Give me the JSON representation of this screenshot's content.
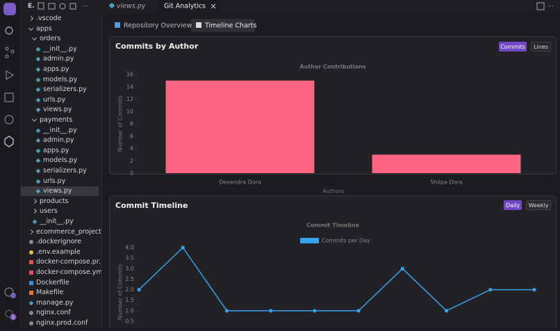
{
  "activity_bar": {
    "badge": "1"
  },
  "explorer": {
    "title": "E.",
    "items": [
      ".vscode",
      "apps",
      "orders",
      "__init__.py",
      "admin.py",
      "apps.py",
      "models.py",
      "serializers.py",
      "urls.py",
      "views.py",
      "payments",
      "__init__.py",
      "admin.py",
      "apps.py",
      "models.py",
      "serializers.py",
      "urls.py",
      "views.py",
      "products",
      "users",
      "__init__.py",
      "ecommerce_project",
      ".dockerignore",
      ".env.example",
      "docker-compose.pr...",
      "docker-compose.yml",
      "Dockerfile",
      "Makefile",
      "manage.py",
      "nginx.conf",
      "nginx.prod.conf"
    ]
  },
  "tabs": [
    "views.py",
    "Git Analytics"
  ],
  "subtabs": [
    "Repository Overview",
    "Timeline Charts"
  ],
  "panels": [
    {
      "title": "Commits by Author",
      "buttons": [
        "Commits",
        "Lines"
      ]
    },
    {
      "title": "Commit Timeline",
      "buttons": [
        "Daily",
        "Weekly"
      ]
    }
  ],
  "chart_data": [
    {
      "type": "bar",
      "title": "Author Contributions",
      "x_label": "Authors",
      "y_label": "Number of Commits",
      "categories": [
        "Devendra Dora",
        "Shilpa Dora"
      ],
      "values": [
        15,
        3
      ],
      "color": "#fd6585",
      "ylim": [
        0,
        16
      ],
      "yticks": [
        0,
        2,
        4,
        6,
        8,
        10,
        12,
        14,
        16
      ],
      "grid": false
    },
    {
      "type": "line",
      "title": "Commit Timeline",
      "y_label": "Number of Commits",
      "categories": [
        null,
        null,
        null,
        null,
        null,
        null,
        null,
        null,
        null,
        null
      ],
      "series": [
        {
          "name": "Commits per Day",
          "color": "#36a2eb",
          "values": [
            2,
            4,
            1,
            1,
            1,
            1,
            3,
            1,
            2,
            2
          ]
        }
      ],
      "ylim": [
        0.5,
        4
      ],
      "yticks": [
        {
          "value": 0.5,
          "label": "0.5"
        },
        {
          "value": 1,
          "label": "1.0"
        },
        {
          "value": 1.5,
          "label": "1.5"
        },
        {
          "value": 2,
          "label": "2.0"
        },
        {
          "value": 2.5,
          "label": "2.5"
        },
        {
          "value": 3,
          "label": "3.0"
        },
        {
          "value": 3.5,
          "label": "3.5"
        },
        {
          "value": 4,
          "label": "4.0"
        }
      ],
      "grid": false
    }
  ]
}
